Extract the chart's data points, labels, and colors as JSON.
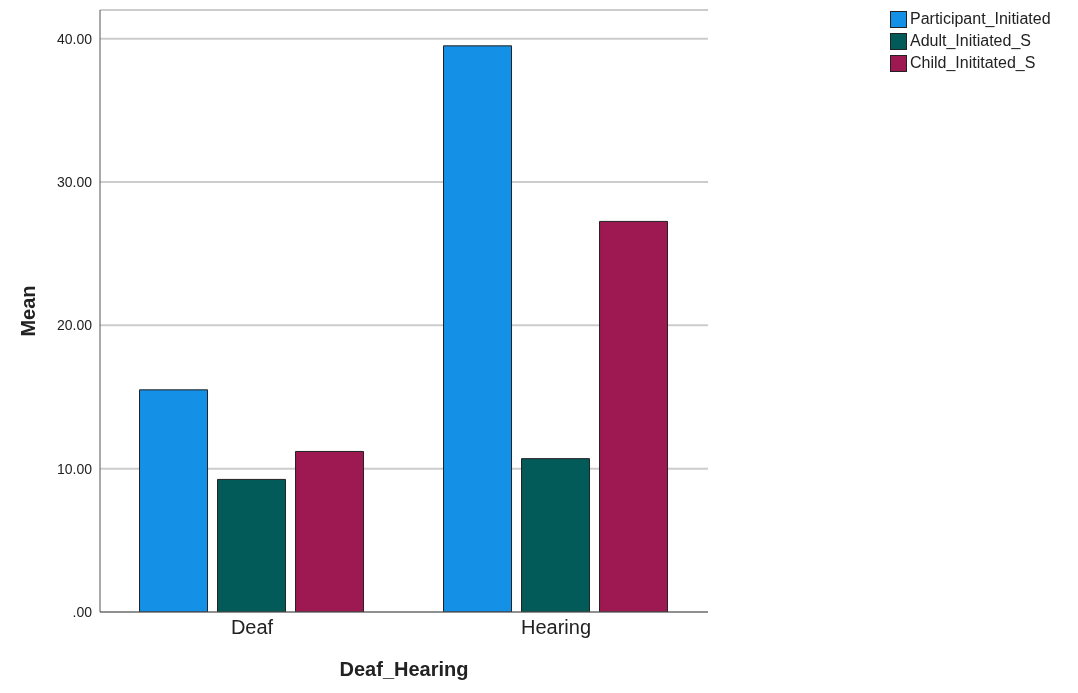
{
  "chart_data": {
    "type": "bar",
    "xlabel": "Deaf_Hearing",
    "ylabel": "Mean",
    "categories": [
      "Deaf",
      "Hearing"
    ],
    "series": [
      {
        "name": "Participant_Initiated",
        "color": "#1490e6",
        "values": [
          15.5,
          39.5
        ]
      },
      {
        "name": "Adult_Initiated_S",
        "color": "#025a59",
        "values": [
          9.25,
          10.7
        ]
      },
      {
        "name": "Child_Inititated_S",
        "color": "#9e1951",
        "values": [
          11.2,
          27.25
        ]
      }
    ],
    "ylim": [
      0,
      42
    ],
    "yticks": [
      {
        "value": 0,
        "label": ".00"
      },
      {
        "value": 10,
        "label": "10.00"
      },
      {
        "value": 20,
        "label": "20.00"
      },
      {
        "value": 30,
        "label": "30.00"
      },
      {
        "value": 40,
        "label": "40.00"
      }
    ],
    "grid": "y",
    "legend": "top right"
  }
}
